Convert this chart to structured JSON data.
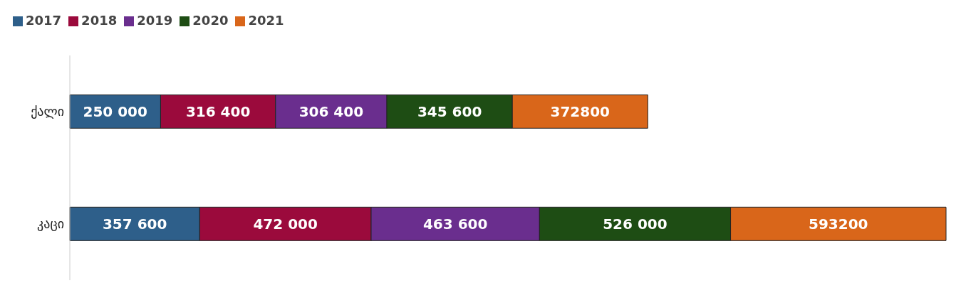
{
  "chart_data": {
    "type": "bar",
    "orientation": "horizontal",
    "stacked": true,
    "categories": [
      "ქალი",
      "კაცი"
    ],
    "series": [
      {
        "name": "2017",
        "color": "#2e5f8a",
        "values": [
          250000,
          357600
        ],
        "value_labels": [
          "250 000",
          "357 600"
        ]
      },
      {
        "name": "2018",
        "color": "#9b0a3c",
        "values": [
          316400,
          472000
        ],
        "value_labels": [
          "316 400",
          "472 000"
        ]
      },
      {
        "name": "2019",
        "color": "#6a2e8e",
        "values": [
          306400,
          463600
        ],
        "value_labels": [
          "306 400",
          "463 600"
        ]
      },
      {
        "name": "2020",
        "color": "#1e4d14",
        "values": [
          345600,
          526000
        ],
        "value_labels": [
          "345 600",
          "526 000"
        ]
      },
      {
        "name": "2021",
        "color": "#d9661a",
        "values": [
          372800,
          593200
        ],
        "value_labels": [
          "372800",
          "593200"
        ]
      }
    ],
    "legend": "top left",
    "grid": false
  }
}
